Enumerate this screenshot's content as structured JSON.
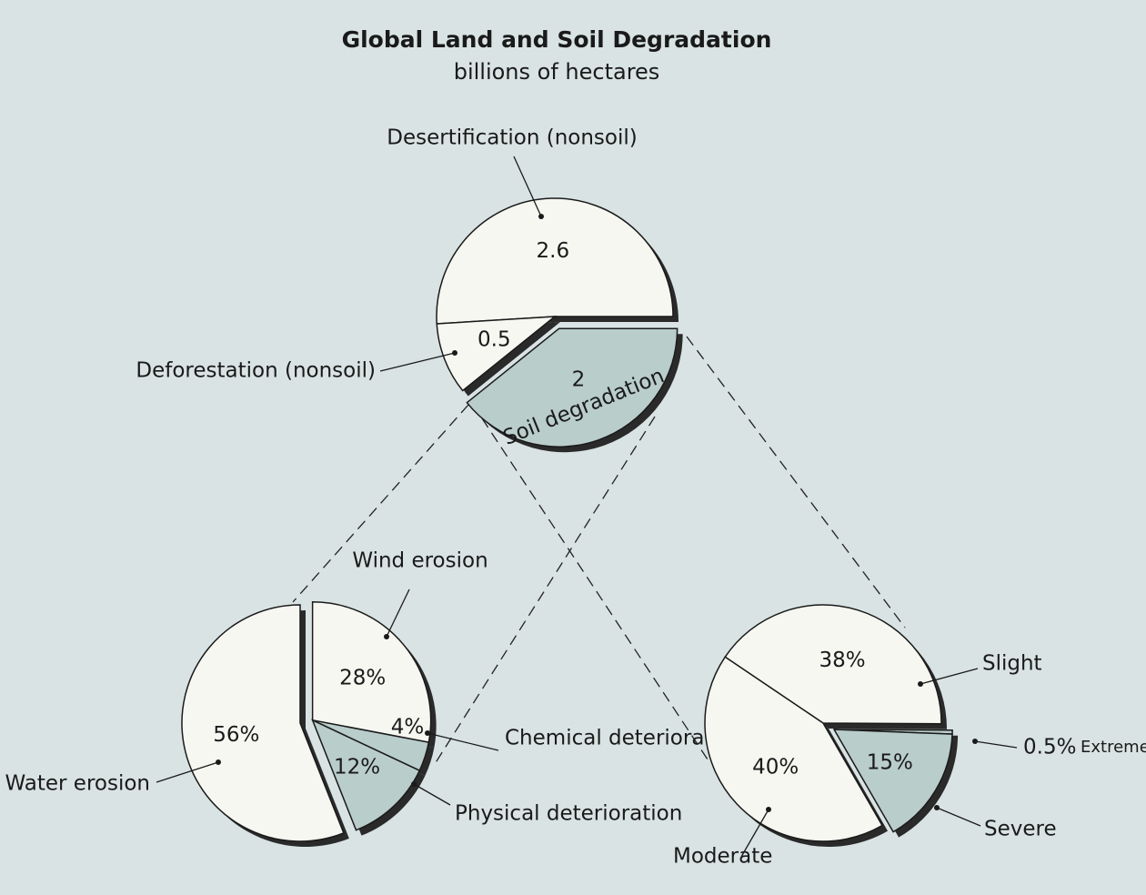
{
  "title": "Global Land and Soil Degradation",
  "subtitle": "billions of hectares",
  "chart_data": [
    {
      "type": "pie",
      "categories": [
        "Desertification (nonsoil)",
        "Deforestation (nonsoil)",
        "Soil degradation"
      ],
      "values": [
        2.6,
        0.5,
        2
      ],
      "colors": [
        "#f7f7f2",
        "#f7f7f2",
        "#b9cdcb"
      ],
      "exploded": [
        2
      ]
    },
    {
      "type": "pie",
      "categories": [
        "Wind erosion",
        "Chemical deterioration",
        "Physical deterioration",
        "Water erosion"
      ],
      "values": [
        28,
        4,
        12,
        56
      ],
      "value_labels": [
        "28%",
        "4%",
        "12%",
        "56%"
      ],
      "colors": [
        "#f7f7f2",
        "#b9cdcb",
        "#b9cdcb",
        "#f7f7f2"
      ],
      "exploded": [
        0,
        1,
        2
      ]
    },
    {
      "type": "pie",
      "categories": [
        "Slight",
        "Extreme",
        "Severe",
        "Moderate"
      ],
      "values": [
        38,
        0.5,
        15,
        40
      ],
      "value_labels": [
        "38%",
        "0.5%",
        "15%",
        "40%"
      ],
      "colors": [
        "#f7f7f2",
        "#b9cdcb",
        "#b9cdcb",
        "#f7f7f2"
      ],
      "exploded": [
        1,
        2
      ]
    }
  ]
}
